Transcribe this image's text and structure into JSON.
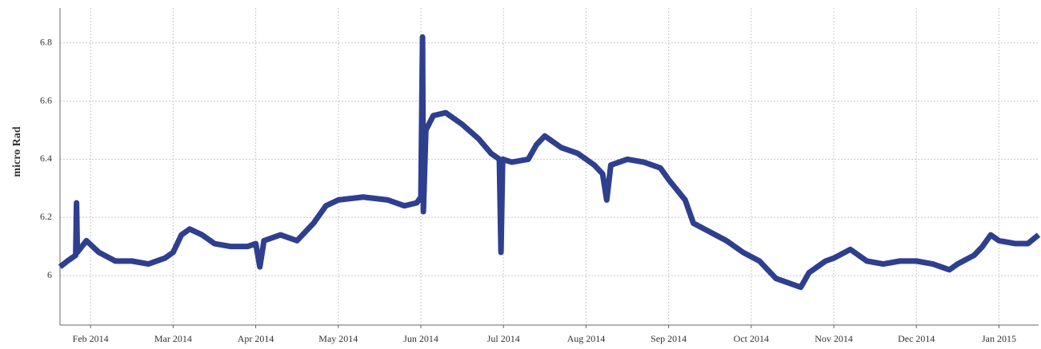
{
  "chart_data": {
    "type": "line",
    "ylabel": "micro Rad",
    "color": "#2e3f8f",
    "grid": true,
    "xlim": [
      0.63,
      12.48
    ],
    "xticks": [
      {
        "value": 1,
        "label": "Feb 2014"
      },
      {
        "value": 2,
        "label": "Mar 2014"
      },
      {
        "value": 3,
        "label": "Apr 2014"
      },
      {
        "value": 4,
        "label": "May 2014"
      },
      {
        "value": 5,
        "label": "Jun 2014"
      },
      {
        "value": 6,
        "label": "Jul 2014"
      },
      {
        "value": 7,
        "label": "Aug 2014"
      },
      {
        "value": 8,
        "label": "Sep 2014"
      },
      {
        "value": 9,
        "label": "Oct 2014"
      },
      {
        "value": 10,
        "label": "Nov 2014"
      },
      {
        "value": 11,
        "label": "Dec 2014"
      },
      {
        "value": 12,
        "label": "Jan 2015"
      }
    ],
    "ylim": [
      5.83,
      6.92
    ],
    "yticks": [
      6,
      6.2,
      6.4,
      6.6,
      6.8
    ],
    "x": [
      0.63,
      0.72,
      0.82,
      0.83,
      0.84,
      0.95,
      1.1,
      1.3,
      1.5,
      1.7,
      1.9,
      2.0,
      2.1,
      2.2,
      2.35,
      2.5,
      2.7,
      2.9,
      3.0,
      3.05,
      3.1,
      3.3,
      3.5,
      3.7,
      3.85,
      4.0,
      4.3,
      4.6,
      4.8,
      4.95,
      5.0,
      5.02,
      5.03,
      5.06,
      5.15,
      5.3,
      5.5,
      5.7,
      5.85,
      5.95,
      5.97,
      5.99,
      6.1,
      6.3,
      6.4,
      6.5,
      6.7,
      6.9,
      7.1,
      7.2,
      7.25,
      7.3,
      7.5,
      7.7,
      7.9,
      8.0,
      8.2,
      8.3,
      8.5,
      8.7,
      8.9,
      9.1,
      9.3,
      9.5,
      9.6,
      9.7,
      9.9,
      10.0,
      10.2,
      10.4,
      10.6,
      10.8,
      11.0,
      11.2,
      11.4,
      11.5,
      11.7,
      11.8,
      11.9,
      12.0,
      12.2,
      12.35,
      12.48
    ],
    "values": [
      6.03,
      6.05,
      6.07,
      6.25,
      6.08,
      6.12,
      6.08,
      6.05,
      6.05,
      6.04,
      6.06,
      6.08,
      6.14,
      6.16,
      6.14,
      6.11,
      6.1,
      6.1,
      6.11,
      6.03,
      6.12,
      6.14,
      6.12,
      6.18,
      6.24,
      6.26,
      6.27,
      6.26,
      6.24,
      6.25,
      6.27,
      6.82,
      6.22,
      6.5,
      6.55,
      6.56,
      6.52,
      6.47,
      6.42,
      6.4,
      6.08,
      6.4,
      6.39,
      6.4,
      6.45,
      6.48,
      6.44,
      6.42,
      6.38,
      6.35,
      6.26,
      6.38,
      6.4,
      6.39,
      6.37,
      6.33,
      6.26,
      6.18,
      6.15,
      6.12,
      6.08,
      6.05,
      5.99,
      5.97,
      5.96,
      6.01,
      6.05,
      6.06,
      6.09,
      6.05,
      6.04,
      6.05,
      6.05,
      6.04,
      6.02,
      6.04,
      6.07,
      6.1,
      6.14,
      6.12,
      6.11,
      6.11,
      6.14
    ]
  }
}
